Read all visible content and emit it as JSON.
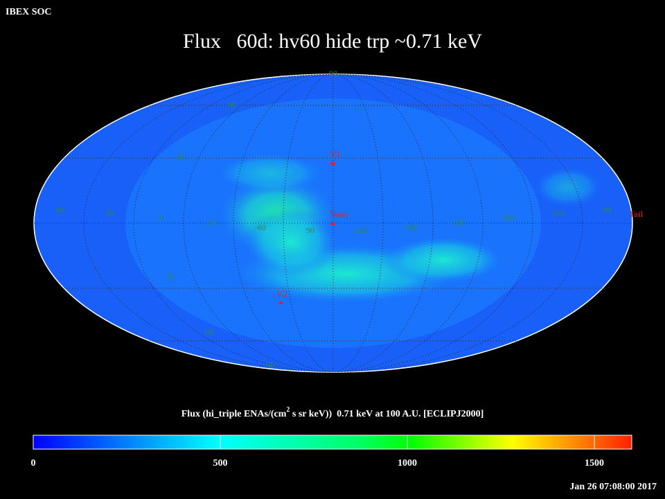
{
  "header": {
    "title": "IBEX SOC"
  },
  "title": "Flux   60d: hv60 hide trp ~0.71 keV",
  "map": {
    "grid_labels": [
      "90",
      "60",
      "30",
      "60",
      "30",
      "0",
      "30",
      "-60",
      "90",
      "-120",
      "-150",
      "180",
      "150",
      "120",
      "90",
      "30",
      "60",
      "90"
    ],
    "markers": [
      "V1",
      "Nose",
      "V2",
      "Tail"
    ]
  },
  "colorbar": {
    "label_parts": [
      "Flux (hi_triple ENAs/(cm",
      "2",
      " s sr keV))  0.71 keV at 100 A.U. [ECLIPJ2000]"
    ],
    "range": [
      0,
      1600
    ],
    "ticks": [
      0,
      500,
      1000,
      1500
    ]
  },
  "timestamp": "Jan 26 07:08:00 2017"
}
